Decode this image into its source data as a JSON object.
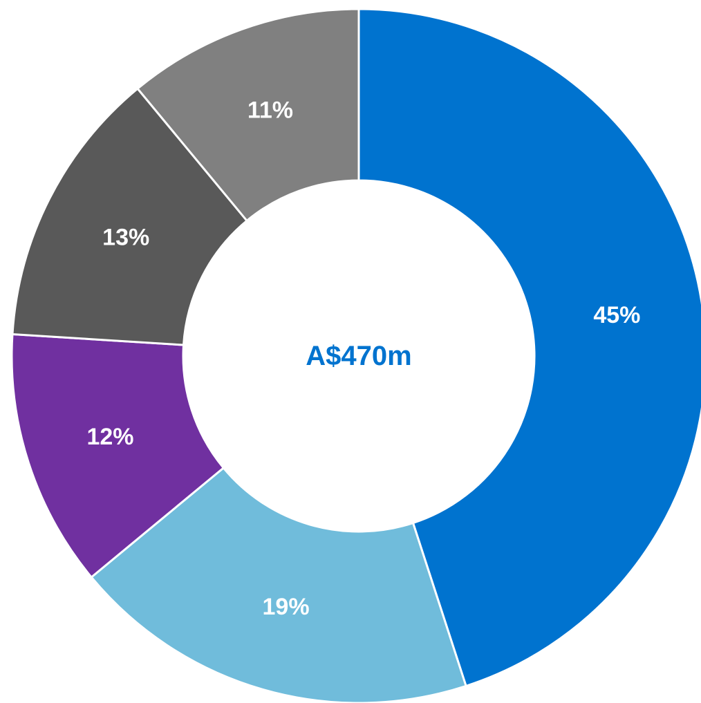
{
  "chart_data": {
    "type": "donut",
    "values": [
      45,
      19,
      12,
      13,
      11
    ],
    "value_labels": [
      "45%",
      "19%",
      "12%",
      "13%",
      "11%"
    ],
    "colors": [
      "#0073cf",
      "#70bcdb",
      "#7030a0",
      "#595959",
      "#808080"
    ],
    "center_label": "A$470m"
  }
}
